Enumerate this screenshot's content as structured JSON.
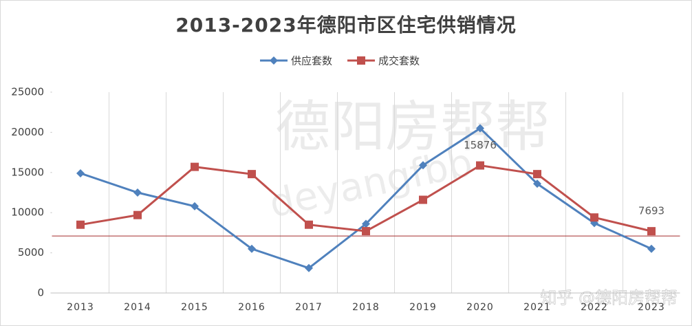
{
  "chart_data": {
    "type": "line",
    "title": "2013-2023年德阳市区住宅供销情况",
    "categories": [
      "2013",
      "2014",
      "2015",
      "2016",
      "2017",
      "2018",
      "2019",
      "2020",
      "2021",
      "2022",
      "2023"
    ],
    "series": [
      {
        "name": "供应套数",
        "color": "#4f81bd",
        "marker": "diamond",
        "values": [
          14900,
          12500,
          10800,
          5500,
          3100,
          8600,
          15900,
          20500,
          13600,
          8700,
          5500
        ]
      },
      {
        "name": "成交套数",
        "color": "#c0504d",
        "marker": "square",
        "values": [
          8500,
          9700,
          15700,
          14800,
          8500,
          7700,
          11600,
          15876,
          14800,
          9400,
          7693
        ],
        "value_labels": [
          null,
          null,
          null,
          null,
          null,
          null,
          null,
          "15876",
          null,
          null,
          "7693"
        ]
      }
    ],
    "ylim": [
      0,
      25000
    ],
    "yticks": [
      0,
      5000,
      10000,
      15000,
      20000,
      25000
    ],
    "reference_line": {
      "value": 7100,
      "color": "#a52a2a"
    },
    "legend": "top",
    "watermarks": [
      "德阳房帮帮",
      "deyangfbb"
    ],
    "footer": "知乎 @德阳房帮帮"
  }
}
